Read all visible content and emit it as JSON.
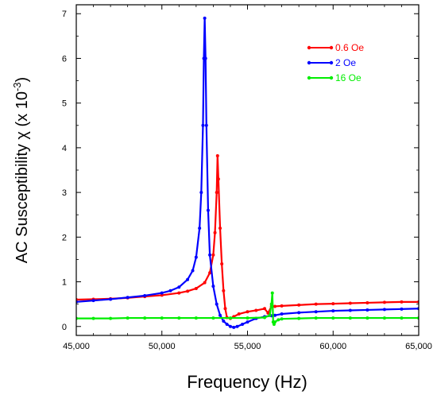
{
  "chart_data": {
    "type": "line",
    "xlabel": "Frequency (Hz)",
    "ylabel": {
      "prefix": "AC Susceptibility ",
      "symbol": "χ",
      "unit_open": " (x 10",
      "exponent": "-3",
      "unit_close": ")"
    },
    "xlim": [
      45000,
      65000
    ],
    "ylim": [
      -0.2,
      7.2
    ],
    "x_ticks": [
      45000,
      50000,
      55000,
      60000,
      65000
    ],
    "x_tick_labels": [
      "45,000",
      "50,000",
      "55,000",
      "60,000",
      "65,000"
    ],
    "y_ticks": [
      0,
      1,
      2,
      3,
      4,
      5,
      6,
      7
    ],
    "y_tick_labels": [
      "0",
      "1",
      "2",
      "3",
      "4",
      "5",
      "6",
      "7"
    ],
    "grid": false,
    "legend_position": "top-right",
    "series": [
      {
        "name": "0.6 Oe",
        "color": "#ff0000",
        "points": [
          [
            45000,
            0.6
          ],
          [
            46000,
            0.61
          ],
          [
            47000,
            0.62
          ],
          [
            48000,
            0.64
          ],
          [
            49000,
            0.67
          ],
          [
            50000,
            0.7
          ],
          [
            51000,
            0.75
          ],
          [
            51500,
            0.79
          ],
          [
            52000,
            0.85
          ],
          [
            52500,
            0.98
          ],
          [
            52800,
            1.2
          ],
          [
            53000,
            1.6
          ],
          [
            53100,
            2.1
          ],
          [
            53200,
            3.0
          ],
          [
            53250,
            3.82
          ],
          [
            53300,
            3.3
          ],
          [
            53400,
            2.2
          ],
          [
            53500,
            1.4
          ],
          [
            53600,
            0.8
          ],
          [
            53700,
            0.4
          ],
          [
            53800,
            0.2
          ],
          [
            54000,
            0.18
          ],
          [
            54200,
            0.22
          ],
          [
            54500,
            0.28
          ],
          [
            55000,
            0.33
          ],
          [
            55500,
            0.36
          ],
          [
            56000,
            0.4
          ],
          [
            56200,
            0.3
          ],
          [
            56400,
            0.45
          ],
          [
            56600,
            0.45
          ],
          [
            57000,
            0.46
          ],
          [
            58000,
            0.48
          ],
          [
            59000,
            0.5
          ],
          [
            60000,
            0.51
          ],
          [
            61000,
            0.52
          ],
          [
            62000,
            0.53
          ],
          [
            63000,
            0.54
          ],
          [
            64000,
            0.55
          ],
          [
            65000,
            0.55
          ]
        ]
      },
      {
        "name": "2 Oe",
        "color": "#0000ff",
        "points": [
          [
            45000,
            0.55
          ],
          [
            46000,
            0.58
          ],
          [
            47000,
            0.61
          ],
          [
            48000,
            0.65
          ],
          [
            49000,
            0.69
          ],
          [
            50000,
            0.75
          ],
          [
            50500,
            0.8
          ],
          [
            51000,
            0.88
          ],
          [
            51500,
            1.05
          ],
          [
            51800,
            1.25
          ],
          [
            52000,
            1.55
          ],
          [
            52200,
            2.2
          ],
          [
            52300,
            3.0
          ],
          [
            52400,
            4.5
          ],
          [
            52450,
            6.0
          ],
          [
            52500,
            6.9
          ],
          [
            52550,
            6.0
          ],
          [
            52600,
            4.5
          ],
          [
            52700,
            2.6
          ],
          [
            52800,
            1.6
          ],
          [
            53000,
            0.9
          ],
          [
            53200,
            0.5
          ],
          [
            53400,
            0.25
          ],
          [
            53600,
            0.12
          ],
          [
            53800,
            0.05
          ],
          [
            54000,
            0.0
          ],
          [
            54200,
            -0.02
          ],
          [
            54400,
            0.0
          ],
          [
            54700,
            0.05
          ],
          [
            55000,
            0.1
          ],
          [
            55500,
            0.18
          ],
          [
            56000,
            0.22
          ],
          [
            56400,
            0.24
          ],
          [
            56600,
            0.25
          ],
          [
            57000,
            0.28
          ],
          [
            58000,
            0.31
          ],
          [
            59000,
            0.33
          ],
          [
            60000,
            0.35
          ],
          [
            61000,
            0.36
          ],
          [
            62000,
            0.37
          ],
          [
            63000,
            0.38
          ],
          [
            64000,
            0.39
          ],
          [
            65000,
            0.4
          ]
        ]
      },
      {
        "name": "16 Oe",
        "color": "#00ee00",
        "points": [
          [
            45000,
            0.18
          ],
          [
            46000,
            0.18
          ],
          [
            47000,
            0.18
          ],
          [
            48000,
            0.19
          ],
          [
            49000,
            0.19
          ],
          [
            50000,
            0.19
          ],
          [
            51000,
            0.19
          ],
          [
            52000,
            0.19
          ],
          [
            53000,
            0.19
          ],
          [
            54000,
            0.19
          ],
          [
            55000,
            0.19
          ],
          [
            56000,
            0.2
          ],
          [
            56300,
            0.25
          ],
          [
            56400,
            0.5
          ],
          [
            56450,
            0.75
          ],
          [
            56500,
            0.1
          ],
          [
            56550,
            0.05
          ],
          [
            56600,
            0.1
          ],
          [
            56800,
            0.15
          ],
          [
            57000,
            0.17
          ],
          [
            58000,
            0.18
          ],
          [
            59000,
            0.19
          ],
          [
            60000,
            0.19
          ],
          [
            61000,
            0.19
          ],
          [
            62000,
            0.19
          ],
          [
            63000,
            0.19
          ],
          [
            64000,
            0.19
          ],
          [
            65000,
            0.19
          ]
        ]
      }
    ]
  }
}
